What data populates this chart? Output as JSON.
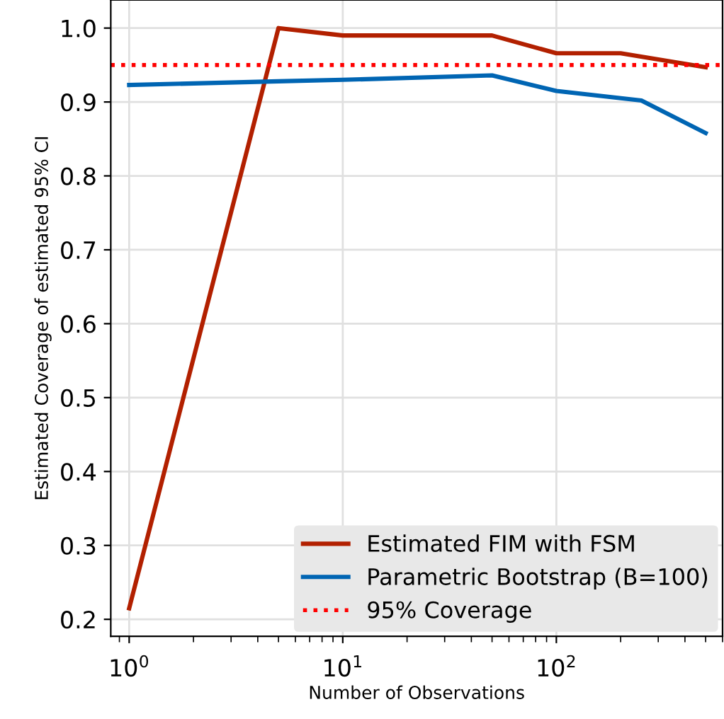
{
  "chart_data": {
    "type": "line",
    "xlabel": "Number of Observations",
    "ylabel": "Estimated Coverage of estimated 95% CI",
    "log": "x",
    "xlim": [
      0.82,
      600
    ],
    "xticks": [
      {
        "value": 1,
        "label": "10$^{0}$"
      },
      {
        "value": 10,
        "label": "10$^{1}$"
      },
      {
        "value": 100,
        "label": "10$^{2}$"
      }
    ],
    "ylim": [
      0.177,
      1.038
    ],
    "yticks": [
      0.2,
      0.3,
      0.4,
      0.5,
      0.6,
      0.7,
      0.8,
      0.9,
      {
        "value": 1,
        "label": "1.0"
      }
    ],
    "series": [
      {
        "name": "Estimated FIM with FSM",
        "color": "#b22000",
        "x": [
          1,
          5,
          10,
          50,
          100,
          200,
          500
        ],
        "values": [
          0.215,
          1.0,
          0.99,
          0.99,
          0.966,
          0.966,
          0.947
        ]
      },
      {
        "name": "Parametric Bootstrap (B=100)",
        "color": "#0065b3",
        "x": [
          1,
          5,
          10,
          50,
          100,
          250,
          500
        ],
        "values": [
          0.923,
          0.928,
          0.93,
          0.936,
          0.915,
          0.902,
          0.858
        ]
      }
    ],
    "ref_lines": [
      {
        "axis": "y",
        "value": 0.95,
        "label": "95% Coverage",
        "color": "#ff0000",
        "line_style": "dotted"
      }
    ],
    "grid": true,
    "legend": "bottom right",
    "line_style": "solid",
    "marker": "none"
  }
}
